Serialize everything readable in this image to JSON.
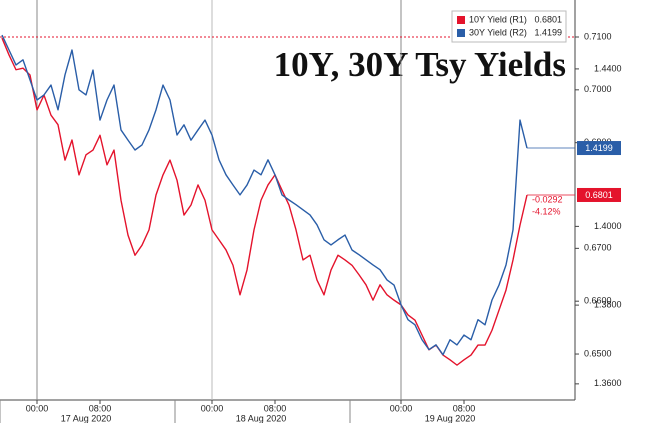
{
  "chart_data": {
    "type": "line",
    "title": "10Y, 30Y Tsy Yields",
    "categories": [
      null,
      null,
      null,
      null,
      null,
      "00:00",
      null,
      null,
      null,
      null,
      null,
      null,
      null,
      null,
      "08:00",
      null,
      null,
      null,
      null,
      null,
      null,
      null,
      null,
      null,
      null,
      null,
      null,
      null,
      null,
      null,
      "00:00",
      null,
      null,
      null,
      null,
      null,
      null,
      null,
      null,
      "08:00",
      null,
      null,
      null,
      null,
      null,
      null,
      null,
      null,
      null,
      null,
      null,
      null,
      null,
      null,
      null,
      null,
      null,
      "00:00",
      null,
      null,
      null,
      null,
      null,
      null,
      null,
      null,
      "08:00",
      null,
      null,
      null,
      null,
      null,
      null,
      null,
      null,
      null
    ],
    "date_labels": [
      null,
      null,
      null,
      null,
      null,
      null,
      null,
      null,
      null,
      null,
      null,
      null,
      "17 Aug 2020",
      null,
      null,
      null,
      null,
      null,
      null,
      null,
      null,
      null,
      null,
      null,
      null,
      null,
      null,
      null,
      null,
      null,
      null,
      null,
      null,
      null,
      null,
      null,
      null,
      "18 Aug 2020",
      null,
      null,
      null,
      null,
      null,
      null,
      null,
      null,
      null,
      null,
      null,
      null,
      null,
      null,
      null,
      null,
      null,
      null,
      null,
      null,
      null,
      null,
      null,
      null,
      null,
      null,
      "19 Aug 2020",
      null,
      null,
      null,
      null,
      null,
      null,
      null,
      null,
      null,
      null,
      null
    ],
    "series": [
      {
        "name": "10Y Yield (R1)",
        "color": "#e4132c",
        "axis": "y",
        "values": [
          0.7098,
          0.7066,
          0.7038,
          0.7041,
          0.7028,
          0.6962,
          0.699,
          0.6952,
          0.6934,
          0.6867,
          0.6905,
          0.6839,
          0.6877,
          0.6886,
          0.6914,
          0.6858,
          0.6886,
          0.6791,
          0.6725,
          0.6687,
          0.6706,
          0.6735,
          0.6801,
          0.6839,
          0.6867,
          0.6829,
          0.6763,
          0.6782,
          0.682,
          0.6791,
          0.6735,
          0.6716,
          0.6697,
          0.6668,
          0.6612,
          0.6659,
          0.6735,
          0.6791,
          0.682,
          0.6839,
          0.681,
          0.6782,
          0.6735,
          0.6678,
          0.6687,
          0.664,
          0.6612,
          0.6659,
          0.6687,
          0.6678,
          0.6668,
          0.665,
          0.6631,
          0.6602,
          0.6631,
          0.6612,
          0.6602,
          0.6593,
          0.6574,
          0.6564,
          0.6536,
          0.6508,
          0.6517,
          0.6498,
          0.6489,
          0.6479,
          0.6489,
          0.6498,
          0.6517,
          0.6517,
          0.6545,
          0.6583,
          0.6621,
          0.6678,
          0.6744,
          0.6801
        ]
      },
      {
        "name": "30Y Yield (R2)",
        "color": "#2a5ea8",
        "axis": "y2",
        "values": [
          1.4486,
          1.4448,
          1.441,
          1.4423,
          1.4372,
          1.4321,
          1.4334,
          1.4359,
          1.4296,
          1.4385,
          1.4448,
          1.4347,
          1.4334,
          1.4397,
          1.427,
          1.4321,
          1.4359,
          1.4245,
          1.4219,
          1.4194,
          1.4207,
          1.4245,
          1.4296,
          1.4359,
          1.4321,
          1.4232,
          1.4258,
          1.4219,
          1.4245,
          1.427,
          1.4232,
          1.4169,
          1.4131,
          1.4105,
          1.408,
          1.4105,
          1.4143,
          1.4131,
          1.4169,
          1.4131,
          1.408,
          1.4067,
          1.4055,
          1.4042,
          1.4029,
          1.4004,
          1.3966,
          1.3953,
          1.3966,
          1.3978,
          1.394,
          1.3928,
          1.3915,
          1.3902,
          1.389,
          1.3864,
          1.3851,
          1.3801,
          1.3763,
          1.375,
          1.3712,
          1.3687,
          1.3699,
          1.3674,
          1.3712,
          1.3699,
          1.3724,
          1.3712,
          1.3763,
          1.375,
          1.3813,
          1.3851,
          1.3902,
          1.3991,
          1.427,
          1.4199
        ]
      }
    ],
    "ylim": [
      0.6413,
      0.717
    ],
    "yticks": [
      {
        "value": 0.71,
        "label": "0.7100"
      },
      {
        "value": 0.7,
        "label": "0.7000"
      },
      {
        "value": 0.69,
        "label": "0.6900"
      },
      {
        "value": 0.67,
        "label": "0.6700"
      },
      {
        "value": 0.66,
        "label": "0.6600"
      },
      {
        "value": 0.65,
        "label": "0.6500"
      }
    ],
    "y2lim": [
      1.3559,
      1.4575
    ],
    "y2ticks": [
      {
        "value": 1.44,
        "label": "1.4400"
      },
      {
        "value": 1.4,
        "label": "1.4000"
      },
      {
        "value": 1.38,
        "label": "1.3800"
      },
      {
        "value": 1.36,
        "label": "1.3600"
      }
    ],
    "reference_line": {
      "value": 0.71,
      "axis": "y"
    },
    "annotations": [
      "-0.0292",
      "-4.12%"
    ],
    "legend": "top-right"
  }
}
